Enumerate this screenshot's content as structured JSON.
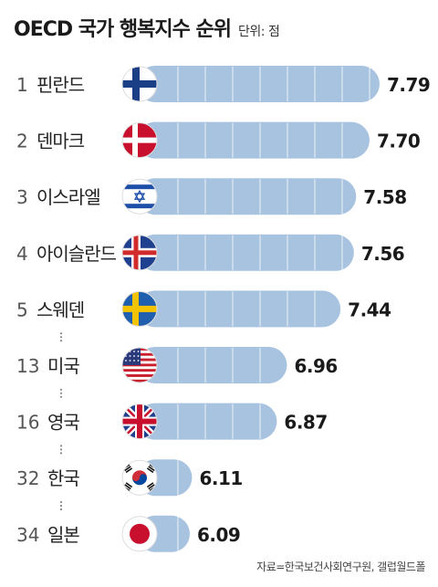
{
  "title": "OECD 국가 행복지수 순위",
  "unit": "단위: 점",
  "source": "자료=한국보건사회연구원, 갤럽월드폴",
  "colors": {
    "bar": "#a8c3e0",
    "bar_grid": "#ffffff",
    "rank_text": "#555555",
    "name_text": "#222222",
    "value_text": "#1a1a1a"
  },
  "chart_data": {
    "type": "bar",
    "orientation": "horizontal",
    "title": "OECD 국가 행복지수 순위",
    "unit": "단위: 점",
    "rows": [
      {
        "rank": "1",
        "country": "핀란드",
        "value": 7.79,
        "label": "7.79",
        "flag": "finland-flag",
        "gap_after": false
      },
      {
        "rank": "2",
        "country": "덴마크",
        "value": 7.7,
        "label": "7.70",
        "flag": "denmark-flag",
        "gap_after": false
      },
      {
        "rank": "3",
        "country": "이스라엘",
        "value": 7.58,
        "label": "7.58",
        "flag": "israel-flag",
        "gap_after": false
      },
      {
        "rank": "4",
        "country": "아이슬란드",
        "value": 7.56,
        "label": "7.56",
        "flag": "iceland-flag",
        "gap_after": false
      },
      {
        "rank": "5",
        "country": "스웨덴",
        "value": 7.44,
        "label": "7.44",
        "flag": "sweden-flag",
        "gap_after": true
      },
      {
        "rank": "13",
        "country": "미국",
        "value": 6.96,
        "label": "6.96",
        "flag": "usa-flag",
        "gap_after": true
      },
      {
        "rank": "16",
        "country": "영국",
        "value": 6.87,
        "label": "6.87",
        "flag": "uk-flag",
        "gap_after": true
      },
      {
        "rank": "32",
        "country": "한국",
        "value": 6.11,
        "label": "6.11",
        "flag": "korea-flag",
        "gap_after": true
      },
      {
        "rank": "34",
        "country": "일본",
        "value": 6.09,
        "label": "6.09",
        "flag": "japan-flag",
        "gap_after": false
      }
    ]
  }
}
